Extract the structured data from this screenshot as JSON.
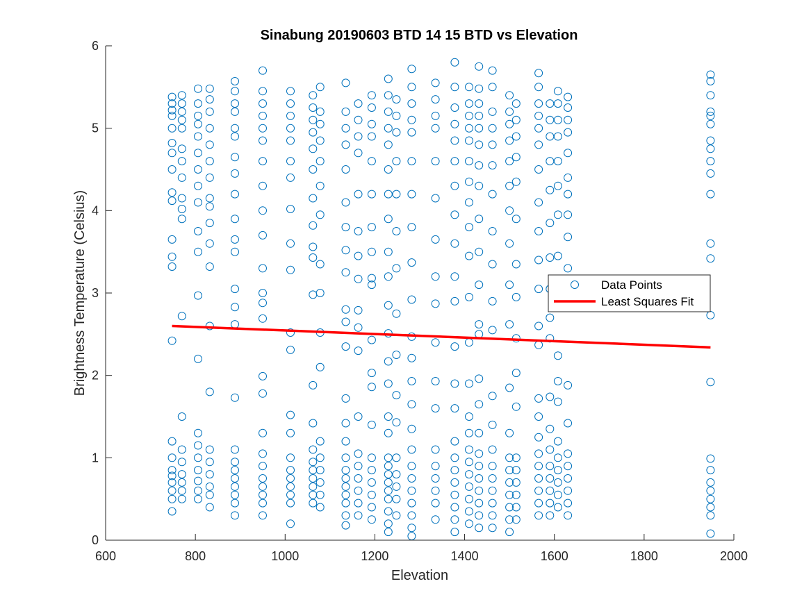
{
  "chart_data": {
    "type": "scatter",
    "title": "Sinabung 20190603 BTD 14 15 BTD vs Elevation",
    "xlabel": "Elevation",
    "ylabel": "Brightness Temperature (Celsius)",
    "xlim": [
      600,
      2000
    ],
    "ylim": [
      0,
      6
    ],
    "xticks": [
      "600",
      "800",
      "1000",
      "1200",
      "1400",
      "1600",
      "1800",
      "2000"
    ],
    "yticks": [
      "0",
      "1",
      "2",
      "3",
      "4",
      "5",
      "6"
    ],
    "grid": false,
    "legend_position": "center-right",
    "series": [
      {
        "name": "Data Points",
        "kind": "markers",
        "marker": "open-circle",
        "color": "#0072BD",
        "columns": [
          {
            "x": 748,
            "y": [
              0.35,
              0.5,
              0.6,
              0.7,
              0.78,
              0.85,
              1.0,
              1.2,
              2.42,
              3.32,
              3.44,
              3.65,
              4.12,
              4.22,
              4.5,
              4.7,
              4.82,
              5.0,
              5.15,
              5.22,
              5.3,
              5.38
            ]
          },
          {
            "x": 770,
            "y": [
              0.5,
              0.6,
              0.7,
              0.8,
              0.95,
              1.1,
              1.5,
              2.72,
              3.9,
              4.02,
              4.15,
              4.4,
              4.6,
              4.75,
              5.0,
              5.1,
              5.2,
              5.3,
              5.4
            ]
          },
          {
            "x": 806,
            "y": [
              0.5,
              0.6,
              0.72,
              0.85,
              1.0,
              1.15,
              1.3,
              2.2,
              2.97,
              3.5,
              3.75,
              4.1,
              4.3,
              4.5,
              4.7,
              4.9,
              5.05,
              5.15,
              5.3,
              5.48
            ]
          },
          {
            "x": 832,
            "y": [
              0.4,
              0.55,
              0.65,
              0.8,
              0.95,
              1.1,
              1.8,
              2.6,
              3.32,
              3.6,
              3.85,
              4.05,
              4.15,
              4.4,
              4.6,
              4.8,
              5.0,
              5.2,
              5.35,
              5.48
            ]
          },
          {
            "x": 888,
            "y": [
              0.3,
              0.45,
              0.55,
              0.65,
              0.75,
              0.85,
              0.95,
              1.1,
              1.73,
              2.62,
              2.83,
              3.05,
              3.5,
              3.65,
              3.9,
              4.2,
              4.45,
              4.65,
              4.9,
              5.0,
              5.2,
              5.3,
              5.45,
              5.57
            ]
          },
          {
            "x": 950,
            "y": [
              0.3,
              0.45,
              0.55,
              0.65,
              0.75,
              0.9,
              1.05,
              1.3,
              1.78,
              1.99,
              2.69,
              2.88,
              3.0,
              3.3,
              3.7,
              4.0,
              4.3,
              4.6,
              4.85,
              5.0,
              5.15,
              5.3,
              5.45,
              5.7
            ]
          },
          {
            "x": 1012,
            "y": [
              0.2,
              0.45,
              0.55,
              0.65,
              0.75,
              0.85,
              1.0,
              1.3,
              1.52,
              2.31,
              2.52,
              3.28,
              3.6,
              4.02,
              4.4,
              4.6,
              4.85,
              5.0,
              5.15,
              5.3,
              5.45
            ]
          },
          {
            "x": 1062,
            "y": [
              0.45,
              0.55,
              0.65,
              0.75,
              0.85,
              0.95,
              1.1,
              1.42,
              1.88,
              2.98,
              3.43,
              3.56,
              3.82,
              4.15,
              4.5,
              4.75,
              4.95,
              5.1,
              5.25,
              5.4
            ]
          },
          {
            "x": 1078,
            "y": [
              0.4,
              0.55,
              0.7,
              0.85,
              1.0,
              1.2,
              2.1,
              2.52,
              3.0,
              3.35,
              3.95,
              4.3,
              4.6,
              4.85,
              5.05,
              5.2,
              5.5
            ]
          },
          {
            "x": 1135,
            "y": [
              0.18,
              0.3,
              0.45,
              0.55,
              0.65,
              0.75,
              0.85,
              1.0,
              1.2,
              1.42,
              1.72,
              2.35,
              2.65,
              2.8,
              3.25,
              3.52,
              3.8,
              4.1,
              4.5,
              4.8,
              5.0,
              5.2,
              5.55
            ]
          },
          {
            "x": 1163,
            "y": [
              0.3,
              0.45,
              0.6,
              0.75,
              0.9,
              1.05,
              1.5,
              2.3,
              2.58,
              2.79,
              3.17,
              3.45,
              3.75,
              4.2,
              4.7,
              4.9,
              5.1,
              5.3
            ]
          },
          {
            "x": 1193,
            "y": [
              0.25,
              0.4,
              0.55,
              0.7,
              0.85,
              1.0,
              1.4,
              1.86,
              2.03,
              2.43,
              3.1,
              3.18,
              3.5,
              3.8,
              4.2,
              4.6,
              4.9,
              5.05,
              5.25,
              5.4
            ]
          },
          {
            "x": 1230,
            "y": [
              0.1,
              0.2,
              0.35,
              0.5,
              0.6,
              0.7,
              0.8,
              0.9,
              1.0,
              1.3,
              1.5,
              1.9,
              2.17,
              2.51,
              2.85,
              3.2,
              3.5,
              3.9,
              4.2,
              4.5,
              4.8,
              5.0,
              5.2,
              5.4,
              5.6
            ]
          },
          {
            "x": 1248,
            "y": [
              0.3,
              0.5,
              0.65,
              0.8,
              1.0,
              1.43,
              1.76,
              2.25,
              2.75,
              3.3,
              3.75,
              4.2,
              4.6,
              4.95,
              5.15,
              5.35
            ]
          },
          {
            "x": 1282,
            "y": [
              0.05,
              0.15,
              0.3,
              0.45,
              0.6,
              0.75,
              0.9,
              1.1,
              1.35,
              1.65,
              1.93,
              2.21,
              2.47,
              2.92,
              3.37,
              3.8,
              4.2,
              4.6,
              4.95,
              5.1,
              5.3,
              5.5,
              5.72
            ]
          },
          {
            "x": 1335,
            "y": [
              0.25,
              0.45,
              0.6,
              0.75,
              0.9,
              1.1,
              1.6,
              1.93,
              2.4,
              2.87,
              3.2,
              3.65,
              4.15,
              4.6,
              5.0,
              5.15,
              5.35,
              5.55
            ]
          },
          {
            "x": 1378,
            "y": [
              0.1,
              0.25,
              0.4,
              0.55,
              0.7,
              0.85,
              1.0,
              1.2,
              1.6,
              1.9,
              2.35,
              2.9,
              3.2,
              3.6,
              3.95,
              4.3,
              4.6,
              4.85,
              5.05,
              5.25,
              5.5,
              5.8
            ]
          },
          {
            "x": 1410,
            "y": [
              0.2,
              0.35,
              0.5,
              0.65,
              0.8,
              0.95,
              1.1,
              1.3,
              1.5,
              1.9,
              2.4,
              2.95,
              3.45,
              3.8,
              4.1,
              4.35,
              4.6,
              4.85,
              5.0,
              5.15,
              5.3,
              5.5
            ]
          },
          {
            "x": 1432,
            "y": [
              0.15,
              0.3,
              0.45,
              0.6,
              0.75,
              0.9,
              1.05,
              1.3,
              1.65,
              1.96,
              2.5,
              2.62,
              3.1,
              3.5,
              3.9,
              4.3,
              4.55,
              4.8,
              5.0,
              5.15,
              5.3,
              5.48,
              5.75
            ]
          },
          {
            "x": 1462,
            "y": [
              0.15,
              0.3,
              0.45,
              0.6,
              0.75,
              0.9,
              1.1,
              1.4,
              1.75,
              2.55,
              2.9,
              3.35,
              3.75,
              4.2,
              4.55,
              4.8,
              5.0,
              5.2,
              5.5,
              5.7
            ]
          },
          {
            "x": 1500,
            "y": [
              0.1,
              0.25,
              0.4,
              0.55,
              0.7,
              0.85,
              1.0,
              1.3,
              1.85,
              2.62,
              3.1,
              3.6,
              4.0,
              4.3,
              4.6,
              4.85,
              5.05,
              5.2,
              5.4
            ]
          },
          {
            "x": 1515,
            "y": [
              0.25,
              0.4,
              0.55,
              0.7,
              0.85,
              1.0,
              1.62,
              2.03,
              2.45,
              2.95,
              3.35,
              3.9,
              4.35,
              4.65,
              4.9,
              5.1,
              5.3
            ]
          },
          {
            "x": 1565,
            "y": [
              0.3,
              0.45,
              0.6,
              0.75,
              0.9,
              1.05,
              1.25,
              1.5,
              1.72,
              2.37,
              2.6,
              3.05,
              3.4,
              3.75,
              4.1,
              4.5,
              4.8,
              5.0,
              5.15,
              5.3,
              5.5,
              5.67
            ]
          },
          {
            "x": 1590,
            "y": [
              0.3,
              0.45,
              0.6,
              0.75,
              0.9,
              1.1,
              1.35,
              1.74,
              2.45,
              2.7,
              3.05,
              3.43,
              3.85,
              4.25,
              4.6,
              4.9,
              5.1,
              5.3
            ]
          },
          {
            "x": 1608,
            "y": [
              0.4,
              0.55,
              0.7,
              0.85,
              1.0,
              1.2,
              1.68,
              1.93,
              2.24,
              3.45,
              3.95,
              4.3,
              4.6,
              4.9,
              5.1,
              5.3,
              5.45
            ]
          },
          {
            "x": 1630,
            "y": [
              0.3,
              0.45,
              0.6,
              0.75,
              0.9,
              1.05,
              1.42,
              1.88,
              3.3,
              3.68,
              3.95,
              4.2,
              4.4,
              4.7,
              4.95,
              5.1,
              5.25,
              5.38
            ]
          },
          {
            "x": 1948,
            "y": [
              0.08,
              0.3,
              0.4,
              0.5,
              0.6,
              0.7,
              0.85,
              0.99,
              1.92,
              2.73,
              3.42,
              3.6,
              4.2,
              4.45,
              4.6,
              4.75,
              4.85,
              5.05,
              5.15,
              5.2,
              5.4,
              5.57,
              5.65
            ]
          }
        ]
      },
      {
        "name": "Least Squares Fit",
        "kind": "line",
        "color": "#FF0000",
        "x": [
          748,
          1948
        ],
        "y": [
          2.6,
          2.34
        ]
      }
    ]
  }
}
